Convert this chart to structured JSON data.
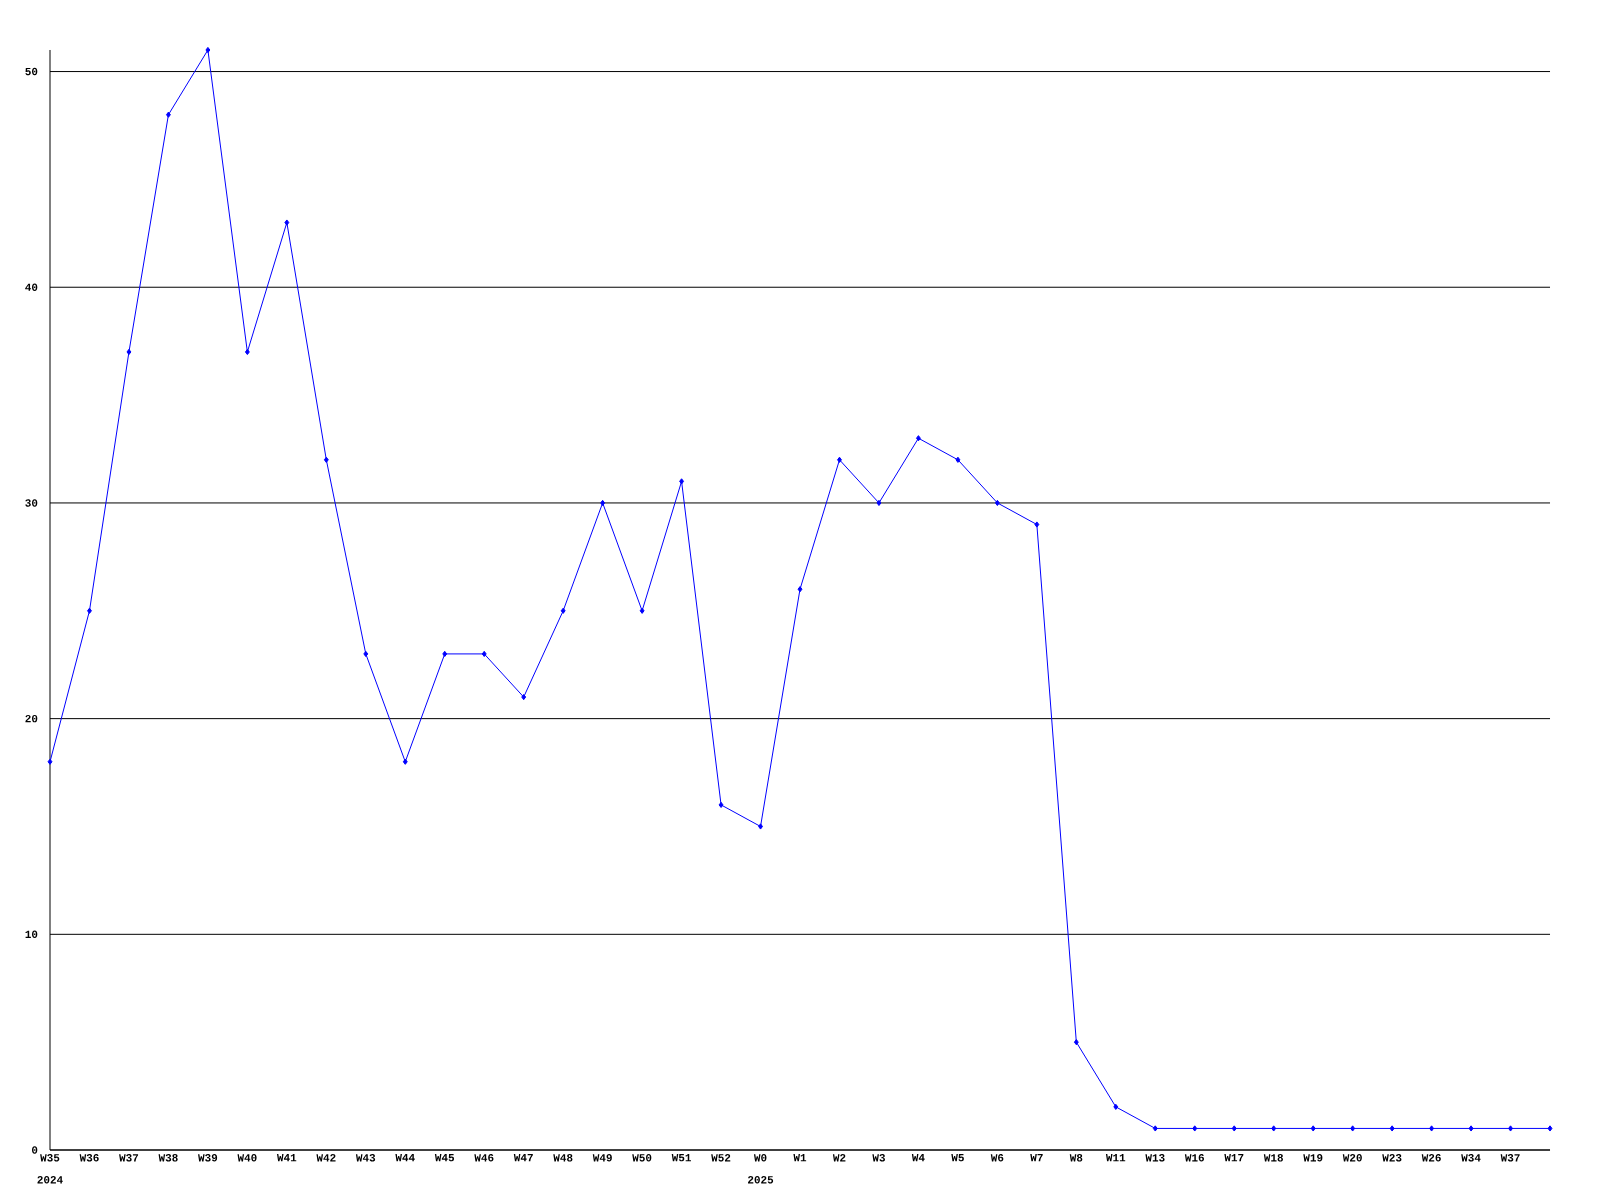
{
  "chart_data": {
    "type": "line",
    "categories": [
      "W35",
      "W36",
      "W37",
      "W38",
      "W39",
      "W40",
      "W41",
      "W42",
      "W43",
      "W44",
      "W45",
      "W46",
      "W47",
      "W48",
      "W49",
      "W50",
      "W51",
      "W52",
      "W0",
      "W1",
      "W2",
      "W3",
      "W4",
      "W5",
      "W6",
      "W7",
      "W8",
      "W11",
      "W13",
      "W16",
      "W17",
      "W18",
      "W19",
      "W20",
      "W23",
      "W26",
      "W34",
      "W37",
      null
    ],
    "series": [
      {
        "color": "#0000ff",
        "values": [
          18,
          25,
          37,
          48,
          51,
          37,
          43,
          32,
          23,
          18,
          23,
          23,
          21,
          25,
          30,
          25,
          31,
          16,
          15,
          26,
          32,
          30,
          33,
          32,
          30,
          29,
          5,
          2,
          1,
          1,
          1,
          1,
          1,
          1,
          1,
          1,
          1,
          1,
          1
        ]
      }
    ],
    "ylim": [
      0,
      51
    ],
    "yticks": [
      0,
      10,
      20,
      30,
      40,
      50
    ],
    "grid": "y",
    "marker": "diamond",
    "line_style": "solid",
    "annotations": [
      "2024",
      "2025"
    ]
  }
}
